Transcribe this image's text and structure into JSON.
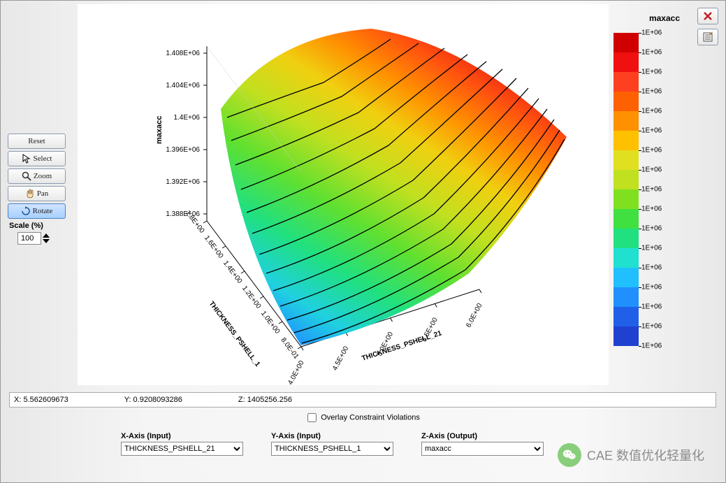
{
  "toolbar": {
    "reset": "Reset",
    "select": "Select",
    "zoom": "Zoom",
    "pan": "Pan",
    "rotate": "Rotate",
    "scale_label": "Scale (%)",
    "scale_value": "100"
  },
  "side_buttons": {
    "close": "close",
    "options": "options"
  },
  "plot": {
    "z_axis_title": "maxacc",
    "z_ticks": [
      "1.408E+06",
      "1.404E+06",
      "1.4E+06",
      "1.396E+06",
      "1.392E+06",
      "1.388E+06"
    ],
    "y_axis_title": "THICKNESS_PSHELL_1",
    "y_ticks": [
      "1.8E+00",
      "1.6E+00",
      "1.4E+00",
      "1.2E+00",
      "1.0E+00",
      "8.0E-01"
    ],
    "x_axis_title": "THICKNESS_PSHELL_21",
    "x_ticks": [
      "4.0E+00",
      "4.5E+00",
      "5.0E+00",
      "5.5E+00",
      "6.0E+00"
    ],
    "surface_type": "3d-surface-contour",
    "surface_colormap": [
      "#2040d0",
      "#2060e8",
      "#2090ff",
      "#20c0ff",
      "#20e0d0",
      "#20e080",
      "#40e040",
      "#80e020",
      "#c0e020",
      "#e0e020",
      "#ffc000",
      "#ff9000",
      "#ff6000",
      "#ff4020",
      "#f01010",
      "#d00000"
    ],
    "contour_line_color": "#000000",
    "background_color": "#ffffff"
  },
  "colorbar": {
    "title": "maxacc",
    "tick_label": "1E+06",
    "segments": [
      {
        "color": "#d00000"
      },
      {
        "color": "#f01010"
      },
      {
        "color": "#ff4020"
      },
      {
        "color": "#ff6000"
      },
      {
        "color": "#ff9000"
      },
      {
        "color": "#ffc000"
      },
      {
        "color": "#e0e020"
      },
      {
        "color": "#c0e020"
      },
      {
        "color": "#80e020"
      },
      {
        "color": "#40e040"
      },
      {
        "color": "#20e080"
      },
      {
        "color": "#20e0d0"
      },
      {
        "color": "#20c0ff"
      },
      {
        "color": "#2090ff"
      },
      {
        "color": "#2060e8"
      },
      {
        "color": "#2040d0"
      }
    ]
  },
  "coords": {
    "x_label": "X: 5.562609673",
    "y_label": "Y: 0.9208093286",
    "z_label": "Z: 1405256.256"
  },
  "overlay": {
    "label": "Overlay Constraint Violations",
    "checked": false
  },
  "axis_selectors": {
    "x": {
      "label": "X-Axis (Input)",
      "value": "THICKNESS_PSHELL_21"
    },
    "y": {
      "label": "Y-Axis (Input)",
      "value": "THICKNESS_PSHELL_1"
    },
    "z": {
      "label": "Z-Axis (Output)",
      "value": "maxacc"
    }
  },
  "watermark": {
    "text": "CAE 数值优化轻量化"
  }
}
